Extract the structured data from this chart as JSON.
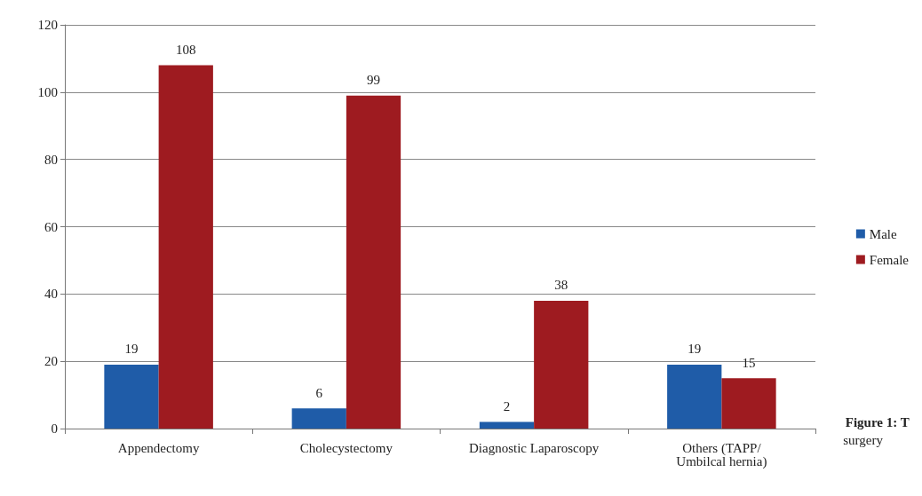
{
  "chart_data": {
    "type": "bar",
    "categories": [
      "Appendectomy",
      "Cholecystectomy",
      "Diagnostic Laparoscopy",
      "Others (TAPP/\nUmbilcal hernia)"
    ],
    "series": [
      {
        "name": "Male",
        "color": "#1f5ca8",
        "values": [
          19,
          6,
          2,
          19
        ]
      },
      {
        "name": "Female",
        "color": "#9e1b20",
        "values": [
          108,
          99,
          38,
          15
        ]
      }
    ],
    "ylim": [
      0,
      120
    ],
    "yticks": [
      0,
      20,
      40,
      60,
      80,
      100,
      120
    ],
    "grid": "y",
    "legend": "right",
    "data_labels": true,
    "annotations": [
      "Figure 1: T",
      "surgery"
    ]
  }
}
